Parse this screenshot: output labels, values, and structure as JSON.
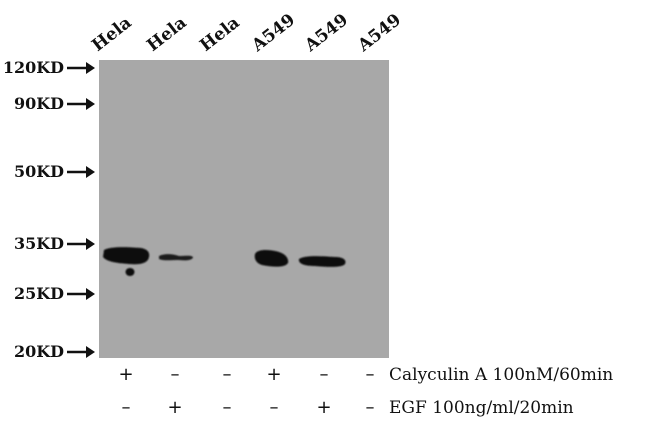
{
  "lanes": [
    "Hela",
    "Hela",
    "Hela",
    "A549",
    "A549",
    "A549"
  ],
  "markers": [
    "120KD",
    "90KD",
    "50KD",
    "35KD",
    "25KD",
    "20KD"
  ],
  "treatments": [
    {
      "label": "Calyculin A 100nM/60min",
      "signs": [
        "+",
        "–",
        "–",
        "+",
        "–",
        "–"
      ]
    },
    {
      "label": "EGF 100ng/ml/20min",
      "signs": [
        "–",
        "+",
        "–",
        "–",
        "+",
        "–"
      ]
    }
  ]
}
